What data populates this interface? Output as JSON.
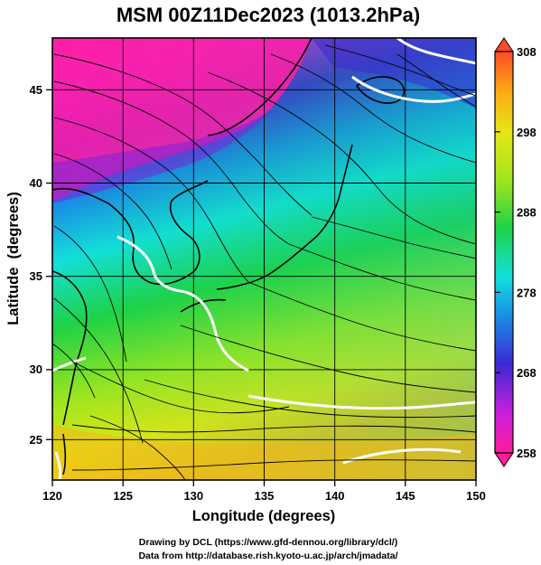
{
  "title": "MSM 00Z11Dec2023 (1013.2hPa)",
  "map": {
    "xlabel": "Longitude (degrees)",
    "ylabel": "Latitude  (degrees)",
    "lon_range": [
      120,
      150
    ],
    "lat_range": [
      22.4,
      48
    ],
    "lon_ticks": [
      "120",
      "125",
      "130",
      "135",
      "140",
      "145",
      "150"
    ],
    "lat_ticks": [
      "25",
      "30",
      "35",
      "40",
      "45"
    ],
    "grid": true,
    "field": "temperature with wind streamlines"
  },
  "colorbar": {
    "range": [
      258,
      308
    ],
    "ticks": [
      "308",
      "298",
      "288",
      "278",
      "268",
      "258"
    ],
    "stops": [
      "#ff1c9a",
      "#c820dc",
      "#3c28d2",
      "#1a8ce6",
      "#12e0dc",
      "#1ed246",
      "#a0e61e",
      "#e6e614",
      "#faaa14",
      "#ff4a28"
    ]
  },
  "credits": {
    "line1": "Drawing by DCL (https://www.gfd-dennou.org/library/dcl/)",
    "line2": "Data from http://database.rish.kyoto-u.ac.jp/arch/jmadata/"
  }
}
